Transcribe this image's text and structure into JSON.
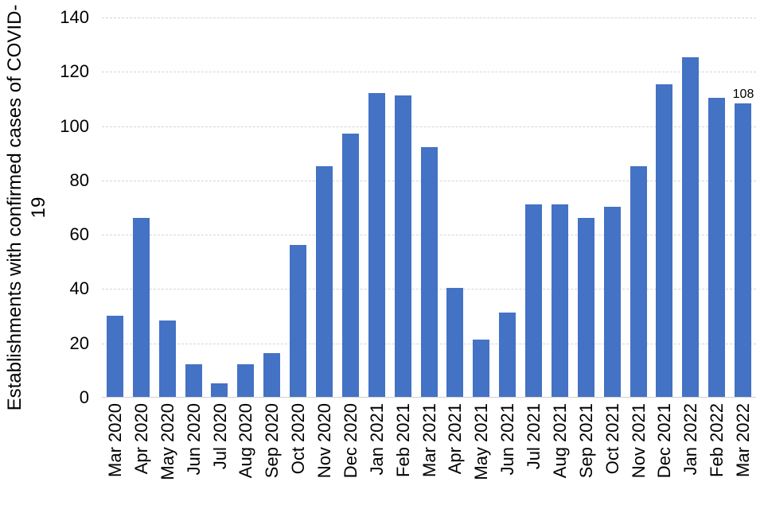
{
  "chart_data": {
    "type": "bar",
    "title": "",
    "xlabel": "",
    "ylabel": "Establishments with confirmed cases of COVID-19",
    "categories": [
      "Mar 2020",
      "Apr 2020",
      "May 2020",
      "Jun 2020",
      "Jul 2020",
      "Aug 2020",
      "Sep 2020",
      "Oct 2020",
      "Nov 2020",
      "Dec 2020",
      "Jan 2021",
      "Feb 2021",
      "Mar 2021",
      "Apr 2021",
      "May 2021",
      "Jun 2021",
      "Jul 2021",
      "Aug 2021",
      "Sep 2021",
      "Oct 2021",
      "Nov 2021",
      "Dec 2021",
      "Jan 2022",
      "Feb 2022",
      "Mar 2022"
    ],
    "values": [
      30,
      66,
      28,
      12,
      5,
      12,
      16,
      56,
      85,
      97,
      112,
      111,
      92,
      40,
      21,
      31,
      71,
      71,
      66,
      70,
      85,
      115,
      125,
      110,
      108
    ],
    "ylim": [
      0,
      140
    ],
    "yticks": [
      0,
      20,
      40,
      60,
      80,
      100,
      120,
      140
    ],
    "grid": "horizontal-dashed",
    "legend": "none",
    "annotations": [
      {
        "category": "Mar 2022",
        "text": "108"
      }
    ]
  },
  "colors": {
    "bar": "#4472c4",
    "gridline": "#d5d5d5",
    "axis_line": "#d0d0d0",
    "text": "#000000",
    "background": "#ffffff"
  }
}
